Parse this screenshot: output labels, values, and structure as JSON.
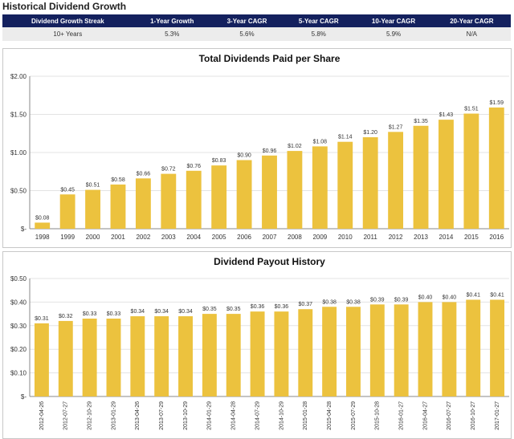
{
  "page_title": "Historical Dividend Growth",
  "growth_table": {
    "headers": [
      "Dividend Growth Streak",
      "1-Year Growth",
      "3-Year CAGR",
      "5-Year CAGR",
      "10-Year CAGR",
      "20-Year CAGR"
    ],
    "row": [
      "10+ Years",
      "5.3%",
      "5.6%",
      "5.8%",
      "5.9%",
      "N/A"
    ]
  },
  "colors": {
    "bar": "#ecc23e",
    "header_bg": "#14215e",
    "row_bg": "#ececec",
    "grid": "#e3e3e3",
    "axis": "#888888"
  },
  "chart_data": [
    {
      "type": "bar",
      "title": "Total Dividends Paid per Share",
      "categories": [
        "1998",
        "1999",
        "2000",
        "2001",
        "2002",
        "2003",
        "2004",
        "2005",
        "2006",
        "2007",
        "2008",
        "2009",
        "2010",
        "2011",
        "2012",
        "2013",
        "2014",
        "2015",
        "2016"
      ],
      "values": [
        0.08,
        0.45,
        0.51,
        0.58,
        0.66,
        0.72,
        0.76,
        0.83,
        0.9,
        0.96,
        1.02,
        1.08,
        1.14,
        1.2,
        1.27,
        1.35,
        1.43,
        1.51,
        1.59
      ],
      "data_labels": [
        "$0.08",
        "$0.45",
        "$0.51",
        "$0.58",
        "$0.66",
        "$0.72",
        "$0.76",
        "$0.83",
        "$0.90",
        "$0.96",
        "$1.02",
        "$1.08",
        "$1.14",
        "$1.20",
        "$1.27",
        "$1.35",
        "$1.43",
        "$1.51",
        "$1.59"
      ],
      "ylim": [
        0,
        2.0
      ],
      "yticks": [
        0,
        0.5,
        1.0,
        1.5,
        2.0
      ],
      "ytick_labels": [
        "$-",
        "$0.50",
        "$1.00",
        "$1.50",
        "$2.00"
      ],
      "grid": true
    },
    {
      "type": "bar",
      "title": "Dividend Payout History",
      "categories": [
        "2012-04-26",
        "2012-07-27",
        "2012-10-29",
        "2013-01-29",
        "2013-04-26",
        "2013-07-29",
        "2013-10-29",
        "2014-01-29",
        "2014-04-28",
        "2014-07-29",
        "2014-10-29",
        "2015-01-28",
        "2015-04-28",
        "2015-07-29",
        "2015-10-28",
        "2016-01-27",
        "2016-04-27",
        "2016-07-27",
        "2016-10-27",
        "2017-01-27"
      ],
      "values": [
        0.31,
        0.32,
        0.33,
        0.33,
        0.34,
        0.34,
        0.34,
        0.35,
        0.35,
        0.36,
        0.36,
        0.37,
        0.38,
        0.38,
        0.39,
        0.39,
        0.4,
        0.4,
        0.41,
        0.41
      ],
      "data_labels": [
        "$0.31",
        "$0.32",
        "$0.33",
        "$0.33",
        "$0.34",
        "$0.34",
        "$0.34",
        "$0.35",
        "$0.35",
        "$0.36",
        "$0.36",
        "$0.37",
        "$0.38",
        "$0.38",
        "$0.39",
        "$0.39",
        "$0.40",
        "$0.40",
        "$0.41",
        "$0.41"
      ],
      "ylim": [
        0,
        0.5
      ],
      "yticks": [
        0,
        0.1,
        0.2,
        0.3,
        0.4,
        0.5
      ],
      "ytick_labels": [
        "$-",
        "$0.10",
        "$0.20",
        "$0.30",
        "$0.40",
        "$0.50"
      ],
      "grid": true
    }
  ]
}
